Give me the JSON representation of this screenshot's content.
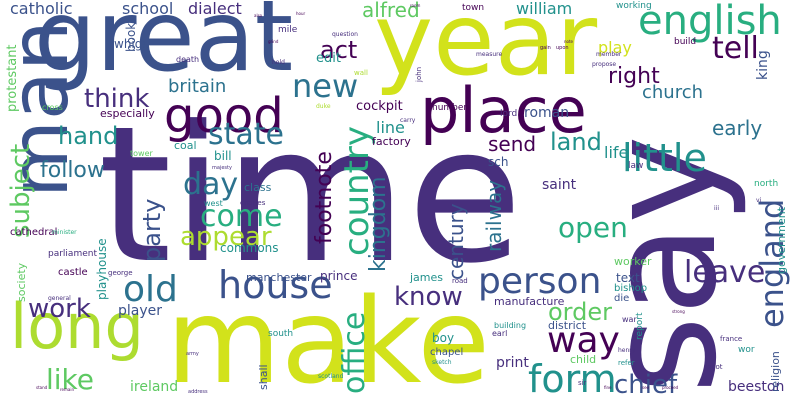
{
  "palette": {
    "dark_purple": "#440154",
    "indigo": "#472f7d",
    "slate_blue": "#3b528b",
    "steel": "#2c728e",
    "teal": "#21918c",
    "green_teal": "#28ae80",
    "green": "#5ec962",
    "lime": "#addc30",
    "yellow_green": "#d2e21b",
    "background": "#ffffff"
  },
  "words": {
    "time": "time",
    "say": "say",
    "make": "make",
    "great": "great",
    "year": "year",
    "man": "man",
    "place": "place",
    "long": "long",
    "good": "good",
    "english": "english",
    "little": "little",
    "house": "house",
    "person": "person",
    "form": "form",
    "old": "old",
    "way": "way",
    "country": "country",
    "england": "england",
    "tell": "tell",
    "new": "new",
    "office": "office",
    "state": "state",
    "come": "come",
    "day": "day",
    "leave": "leave",
    "work": "work",
    "know": "know",
    "open": "open",
    "chief": "chief",
    "appear": "appear",
    "think": "think",
    "hand": "hand",
    "like": "like",
    "subject": "subject",
    "order": "order",
    "right": "right",
    "land": "land",
    "kingdom": "kingdom",
    "party": "party",
    "footnote": "footnote",
    "railway": "railway",
    "century": "century",
    "follow": "follow",
    "send": "send",
    "church": "church",
    "britain": "britain",
    "act": "act",
    "early": "early",
    "alfred": "alfred",
    "catholic": "catholic",
    "school": "school",
    "dialect": "dialect",
    "william": "william",
    "king": "king",
    "play": "play",
    "line": "line",
    "life": "life",
    "ireland": "ireland",
    "print": "print",
    "beeston": "beeston",
    "saint": "saint",
    "roman": "roman",
    "player": "player",
    "protestant": "protestant",
    "edit": "edit",
    "whigs": "whigs",
    "book": "book",
    "text": "text",
    "cockpit": "cockpit",
    "prince": "prince",
    "commons": "commons",
    "playhouse": "playhouse",
    "james": "james",
    "religion": "religion",
    "government": "government",
    "bill": "bill",
    "especially": "especially",
    "coal": "coal",
    "factory": "factory",
    "sch": "sch",
    "class": "class",
    "manchester": "manchester",
    "boy": "boy",
    "district": "district",
    "shall": "shall",
    "chapel": "chapel",
    "child": "child",
    "worker": "worker",
    "manufacture": "manufacture",
    "bishop": "bishop",
    "die": "die",
    "society": "society",
    "castle": "castle",
    "cathedral": "cathedral",
    "parliament": "parliament",
    "south": "south",
    "working": "working",
    "town": "town",
    "mile": "mile",
    "number": "number",
    "lord": "lord",
    "law": "law",
    "north": "north",
    "report": "report",
    "build": "build",
    "wor": "wor",
    "building": "building",
    "earl": "earl",
    "war": "war",
    "cross": "cross",
    "tower": "tower",
    "west": "west",
    "death": "death",
    "hold": "hold",
    "wall": "wall",
    "john": "john",
    "carry": "carry",
    "measure": "measure",
    "question": "question",
    "member": "member",
    "propose": "propose",
    "charles": "charles",
    "minister": "minister",
    "george": "george",
    "general": "general",
    "road": "road",
    "scotland": "scotland",
    "sketch": "sketch",
    "refer": "refer",
    "sir": "sir",
    "henry": "henry",
    "scot": "scot",
    "france": "france",
    "iii": "iii",
    "majesty": "majesty",
    "duke": "duke",
    "address": "address",
    "army": "army",
    "vi": "vi",
    "gain": "gain",
    "upon": "upon",
    "note": "note",
    "see": "see",
    "fine": "fine",
    "strong": "strong",
    "proceed": "proceed",
    "remain": "remain",
    "stand": "stand",
    "grind": "grind",
    "also": "also",
    "hour": "hour",
    "room": "room"
  }
}
